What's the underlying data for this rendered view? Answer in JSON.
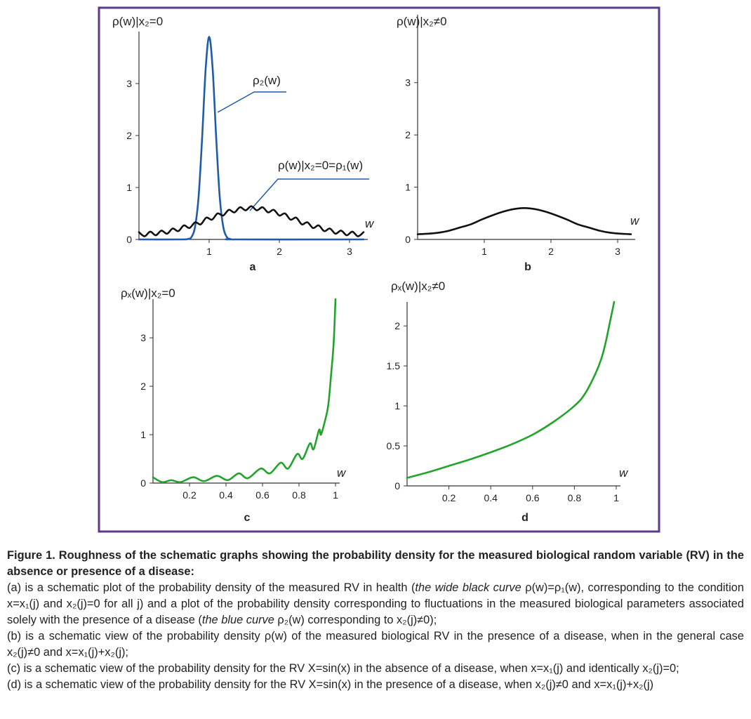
{
  "chart_data": [
    {
      "type": "line",
      "panel": "a",
      "ylabel": "ρ(w)|x₂=0",
      "xlabel": "w",
      "xlim": [
        0,
        3.2
      ],
      "ylim": [
        0,
        4
      ],
      "xticks": [
        1,
        2,
        3
      ],
      "yticks": [
        0,
        1,
        2,
        3
      ],
      "annotations": [
        "ρ₂(w)",
        "ρ(w)|x₂=0=ρ₁(w)"
      ],
      "series": [
        {
          "name": "ρ₂(w)",
          "color": "#1f5ba8",
          "x": [
            0,
            0.6,
            0.7,
            0.75,
            0.8,
            0.85,
            0.9,
            0.95,
            1,
            1.05,
            1.1,
            1.15,
            1.2,
            1.25,
            1.3,
            1.4,
            3.2
          ],
          "values": [
            0,
            0,
            0.01,
            0.05,
            0.25,
            0.83,
            1.96,
            3.28,
            3.9,
            3.28,
            1.96,
            0.83,
            0.25,
            0.05,
            0.01,
            0,
            0
          ]
        },
        {
          "name": "ρ₁(w)",
          "color": "#111111",
          "x": [
            0,
            0.08,
            0.16,
            0.24,
            0.32,
            0.4,
            0.48,
            0.56,
            0.64,
            0.72,
            0.8,
            0.88,
            0.96,
            1.04,
            1.12,
            1.2,
            1.28,
            1.36,
            1.44,
            1.52,
            1.6,
            1.68,
            1.76,
            1.84,
            1.92,
            2,
            2.08,
            2.16,
            2.24,
            2.32,
            2.4,
            2.48,
            2.56,
            2.64,
            2.72,
            2.8,
            2.88,
            2.96,
            3.04,
            3.12,
            3.2
          ],
          "values": [
            0.14,
            0.06,
            0.15,
            0.08,
            0.17,
            0.11,
            0.21,
            0.16,
            0.27,
            0.22,
            0.33,
            0.29,
            0.42,
            0.38,
            0.5,
            0.46,
            0.57,
            0.52,
            0.62,
            0.56,
            0.64,
            0.56,
            0.62,
            0.52,
            0.57,
            0.46,
            0.5,
            0.38,
            0.42,
            0.29,
            0.33,
            0.22,
            0.27,
            0.16,
            0.21,
            0.11,
            0.17,
            0.08,
            0.15,
            0.06,
            0.14
          ]
        }
      ]
    },
    {
      "type": "line",
      "panel": "b",
      "ylabel": "ρ(w)|x₂≠0",
      "xlabel": "w",
      "xlim": [
        0,
        3.2
      ],
      "ylim": [
        0,
        4.3
      ],
      "xticks": [
        1,
        2,
        3
      ],
      "yticks": [
        0,
        1,
        2,
        3
      ],
      "series": [
        {
          "name": "ρ(w)",
          "color": "#111111",
          "x": [
            0,
            0.16,
            0.32,
            0.48,
            0.64,
            0.8,
            0.96,
            1.12,
            1.28,
            1.44,
            1.6,
            1.76,
            1.92,
            2.08,
            2.24,
            2.4,
            2.56,
            2.72,
            2.88,
            3.04,
            3.2
          ],
          "values": [
            0.1,
            0.11,
            0.13,
            0.17,
            0.23,
            0.29,
            0.38,
            0.46,
            0.53,
            0.58,
            0.6,
            0.58,
            0.53,
            0.46,
            0.38,
            0.29,
            0.23,
            0.17,
            0.13,
            0.11,
            0.1
          ]
        }
      ]
    },
    {
      "type": "line",
      "panel": "c",
      "ylabel": "ρₓ(w)|x₂=0",
      "xlabel": "w",
      "xlim": [
        0,
        1
      ],
      "ylim": [
        0,
        3.8
      ],
      "xticks": [
        0.2,
        0.4,
        0.6,
        0.8,
        1
      ],
      "yticks": [
        0,
        1,
        2,
        3
      ],
      "series": [
        {
          "name": "ρₓ(w)",
          "color": "#22a32a",
          "x": [
            0,
            0.05,
            0.1,
            0.15,
            0.22,
            0.28,
            0.35,
            0.41,
            0.47,
            0.52,
            0.59,
            0.64,
            0.7,
            0.74,
            0.79,
            0.82,
            0.86,
            0.88,
            0.91,
            0.92,
            0.94,
            0.96,
            0.975,
            0.99,
            1
          ],
          "values": [
            0.12,
            0.02,
            0.06,
            0.02,
            0.12,
            0.04,
            0.15,
            0.06,
            0.2,
            0.1,
            0.3,
            0.2,
            0.42,
            0.3,
            0.6,
            0.5,
            0.82,
            0.7,
            1.1,
            1.0,
            1.25,
            1.6,
            2.2,
            2.9,
            3.8
          ]
        }
      ]
    },
    {
      "type": "line",
      "panel": "d",
      "ylabel": "ρₓ(w)|x₂≠0",
      "xlabel": "w",
      "xlim": [
        0,
        1
      ],
      "ylim": [
        0,
        2.3
      ],
      "xticks": [
        0.2,
        0.4,
        0.6,
        0.8,
        1
      ],
      "yticks": [
        0,
        0.5,
        1,
        1.5,
        2
      ],
      "series": [
        {
          "name": "ρₓ(w)",
          "color": "#22a32a",
          "x": [
            0,
            0.1,
            0.2,
            0.3,
            0.4,
            0.5,
            0.6,
            0.7,
            0.8,
            0.85,
            0.9,
            0.93,
            0.95,
            0.97,
            0.99
          ],
          "values": [
            0.1,
            0.17,
            0.25,
            0.33,
            0.42,
            0.52,
            0.64,
            0.8,
            1.0,
            1.15,
            1.4,
            1.6,
            1.8,
            2.05,
            2.3
          ]
        }
      ]
    }
  ],
  "caption": {
    "title": "Figure 1. Roughness of the schematic graphs showing the probability density for the measured biological random variable (RV) in the absence or presence of a disease:",
    "items": [
      [
        "(a) is a schematic plot of the probability density of the measured RV in health (",
        "the wide black curve",
        " ρ(w)=ρ₁(w), corresponding to the condition x=x₁(j) and x₂(j)=0 for all j) and a plot of the probability density corresponding to fluctuations in the measured biological parameters associated solely with the presence of a disease (",
        "the blue curve",
        " ρ₂(w) corresponding to x₂(j)≠0);"
      ],
      [
        "(b) is a schematic view of the probability density ρ(w) of the measured biological RV in the presence of a disease, when in the general case x₂(j)≠0 and x=x₁(j)+x₂(j);"
      ],
      [
        "(c) is a schematic view of the probability density for the RV X=sin(x) in the absence of a disease, when x=x₁(j) and identically x₂(j)=0;"
      ],
      [
        "(d) is a schematic view of the probability density for the RV X=sin(x) in the presence of a disease, when x₂(j)≠0 and x=x₁(j)+x₂(j)"
      ]
    ]
  }
}
